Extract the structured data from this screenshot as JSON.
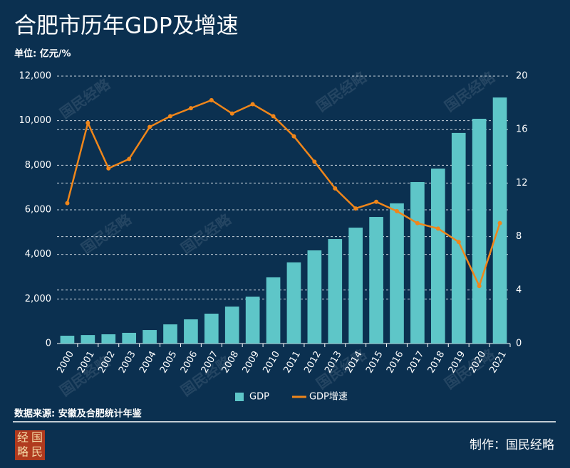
{
  "chart_data": {
    "type": "bar-line",
    "title": "合肥市历年GDP及增速",
    "subtitle": "单位: 亿元/%",
    "source": "数据来源: 安徽及合肥统计年鉴",
    "credit": "制作：国民经略",
    "watermark": "国民经略",
    "categories": [
      "2000",
      "2001",
      "2002",
      "2003",
      "2004",
      "2005",
      "2006",
      "2007",
      "2008",
      "2009",
      "2010",
      "2011",
      "2012",
      "2013",
      "2014",
      "2015",
      "2016",
      "2017",
      "2018",
      "2019",
      "2020",
      "2021"
    ],
    "series": [
      {
        "name": "GDP",
        "type": "bar",
        "color": "#5ec6c8",
        "axis": "y",
        "values": [
          350,
          380,
          415,
          480,
          605,
          860,
          1085,
          1340,
          1660,
          2105,
          2970,
          3640,
          4180,
          4690,
          5200,
          5680,
          6290,
          7245,
          7850,
          9450,
          10085,
          11040
        ]
      },
      {
        "name": "GDP增速",
        "type": "line",
        "color": "#f0861a",
        "axis": "y2",
        "values": [
          10.5,
          16.5,
          13.1,
          13.8,
          16.2,
          17.0,
          17.6,
          18.2,
          17.2,
          17.9,
          17.0,
          15.5,
          13.6,
          11.6,
          10.1,
          10.6,
          9.9,
          9.0,
          8.6,
          7.6,
          4.3,
          9.0
        ]
      }
    ],
    "ylim": [
      0,
      12000
    ],
    "yticks": [
      0,
      {
        "value": 2000,
        "label": "2,000"
      },
      {
        "value": 4000,
        "label": "4,000"
      },
      {
        "value": 6000,
        "label": "6,000"
      },
      {
        "value": 8000,
        "label": "8,000"
      },
      {
        "value": 10000,
        "label": "10,000"
      },
      {
        "value": 12000,
        "label": "12,000"
      }
    ],
    "y2lim": [
      0,
      20
    ],
    "y2ticks": [
      0,
      4,
      8,
      12,
      16,
      20
    ],
    "grid": true,
    "legend": "bottom"
  },
  "logo": {
    "chars": [
      "经",
      "国",
      "略",
      "民"
    ]
  }
}
